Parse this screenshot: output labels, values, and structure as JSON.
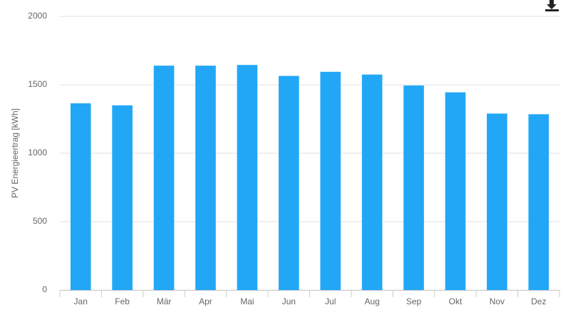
{
  "chart_data": {
    "type": "bar",
    "y_label": "PV Energieertrag [kWh]",
    "categories": [
      "Jan",
      "Feb",
      "Mär",
      "Apr",
      "Mai",
      "Jun",
      "Jul",
      "Aug",
      "Sep",
      "Okt",
      "Nov",
      "Dez"
    ],
    "values": [
      1365,
      1350,
      1640,
      1640,
      1645,
      1565,
      1595,
      1575,
      1495,
      1445,
      1290,
      1285
    ],
    "color": "#22a7f7",
    "ylim": [
      0,
      2000
    ],
    "yticks": [
      0,
      500,
      1000,
      1500,
      2000
    ],
    "grid": true
  }
}
